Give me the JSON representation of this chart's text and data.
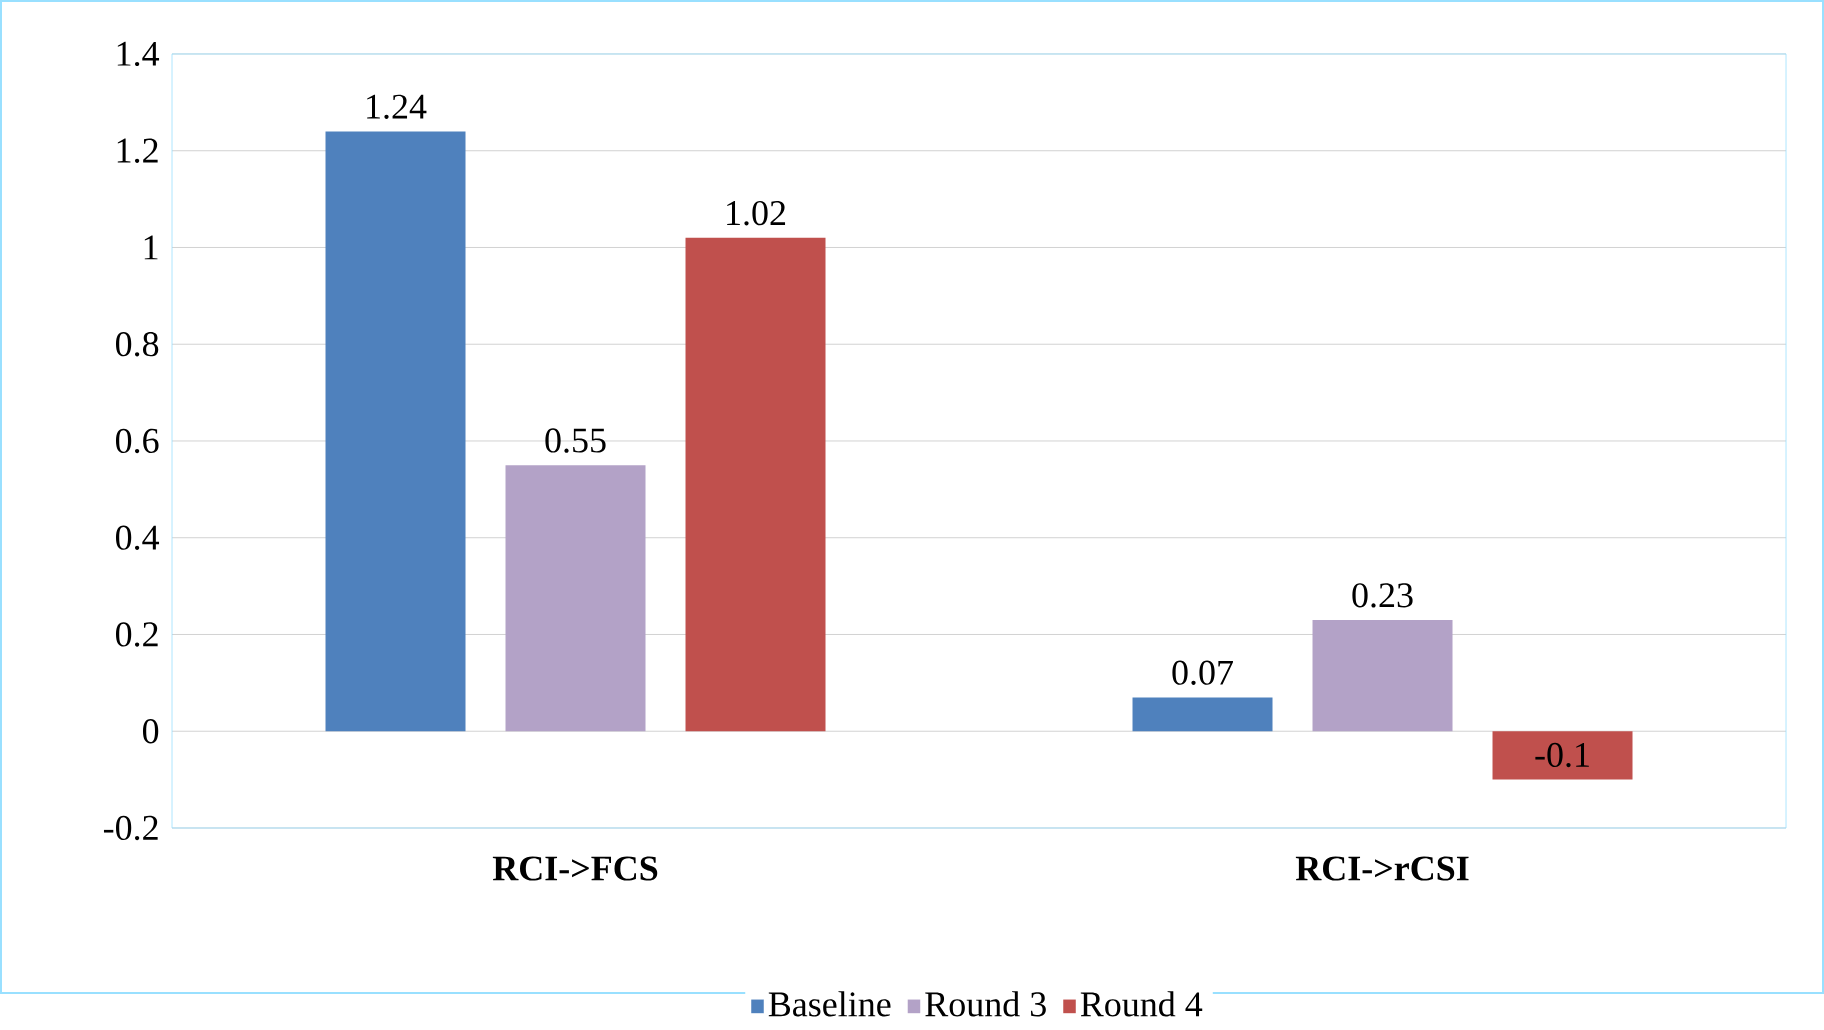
{
  "chart_data": {
    "type": "bar",
    "categories": [
      "RCI->FCS",
      "RCI->rCSI"
    ],
    "series": [
      {
        "name": "Baseline",
        "color": "#4f81bd",
        "values": [
          1.24,
          0.07
        ]
      },
      {
        "name": "Round 3",
        "color": "#b3a2c7",
        "values": [
          0.55,
          0.23
        ]
      },
      {
        "name": "Round 4",
        "color": "#c0504d",
        "values": [
          1.02,
          -0.1
        ]
      }
    ],
    "ylim": [
      -0.2,
      1.4
    ],
    "yticks": [
      -0.2,
      0,
      0.2,
      0.4,
      0.6,
      0.8,
      1,
      1.2,
      1.4
    ],
    "grid": "y",
    "legend": "bottom",
    "data_labels": true
  }
}
